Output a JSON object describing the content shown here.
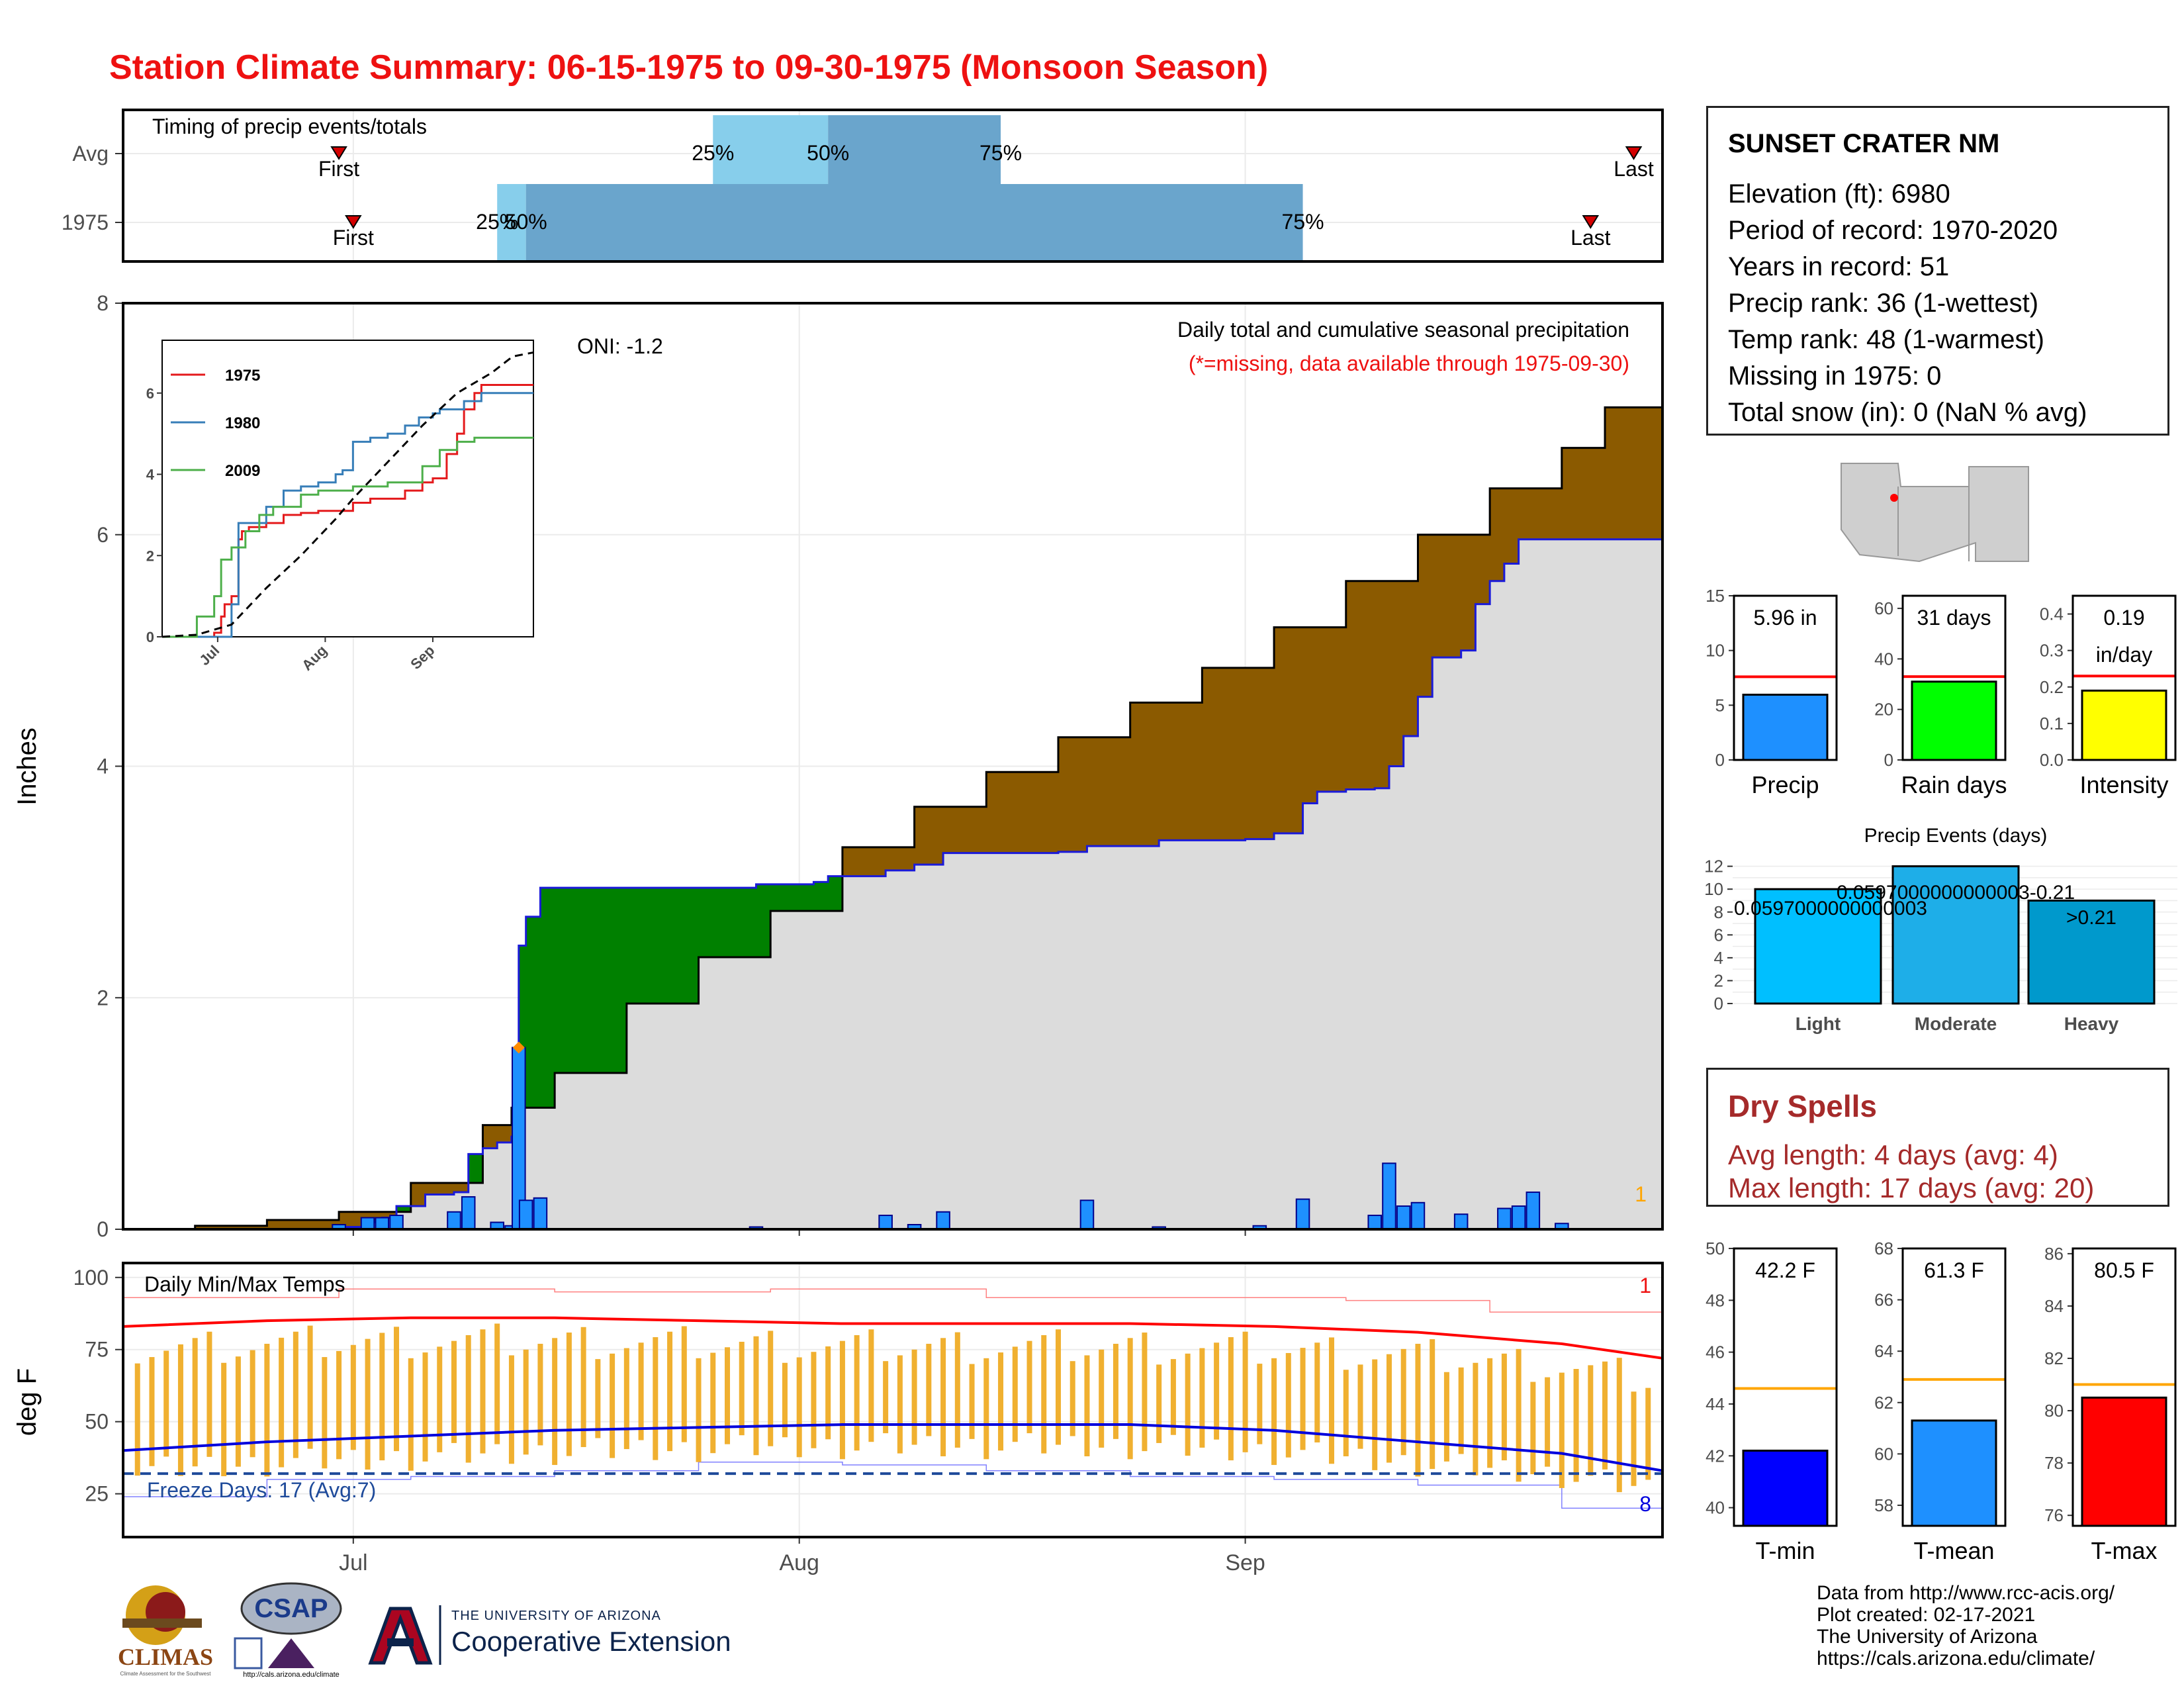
{
  "title": "Station Climate Summary: 06-15-1975 to 09-30-1975 (Monsoon Season)",
  "colors": {
    "title": "#ee1111",
    "avg_cumulative_fill": "#8b5a00",
    "year_above_avg_fill": "#008000",
    "below_fill": "#dcdcdc",
    "daily_bar": "#1e90ff",
    "tmax_line": "#ff0000",
    "tmin_line": "#0000dd",
    "range_bar": "#f0b030",
    "dry_spells": "#a52a2a"
  },
  "info": {
    "station": "SUNSET CRATER NM",
    "lines": [
      "Elevation (ft): 6980",
      "Period of record: 1970-2020",
      "Years in record: 51",
      "Precip rank: 36 (1-wettest)",
      "Temp rank: 48 (1-warmest)",
      "Missing in 1975: 0",
      "Total snow (in): 0 (NaN % avg)"
    ]
  },
  "dry_spells": {
    "title": "Dry Spells",
    "avg": "Avg length: 4 days (avg: 4)",
    "max": "Max length: 17 days (avg: 20)"
  },
  "credits": [
    "Data from http://www.rcc-acis.org/",
    "Plot created: 02-17-2021",
    "The University of Arizona",
    "https://cals.arizona.edu/climate/"
  ],
  "logos": {
    "climas": "CLIMAS",
    "climas_sub": "Climate Assessment for the Southwest",
    "csap": "CSAP",
    "csap_url": "http://cals.arizona.edu/climate",
    "ua_small": "THE UNIVERSITY OF ARIZONA",
    "ua_big": "Cooperative Extension"
  },
  "chart_data": [
    {
      "id": "timing",
      "type": "bar",
      "title": "Timing of precip events/totals",
      "rows": [
        {
          "name": "Avg",
          "first": "06-30",
          "p25": "07-26",
          "p50": "08-03",
          "p75": "08-15",
          "last": "09-28"
        },
        {
          "name": "1975",
          "first": "07-01",
          "p25": "07-11",
          "p50": "07-13",
          "p75": "09-05",
          "last": "09-25"
        }
      ],
      "marker_labels": {
        "first": "First",
        "last": "Last",
        "p25": "25%",
        "p50": "50%",
        "p75": "75%"
      },
      "x_ticks": [
        "Jul",
        "Aug",
        "Sep"
      ]
    },
    {
      "id": "cumulative",
      "type": "area",
      "title": "Daily total and cumulative seasonal precipitation",
      "subtitle": "(*=missing, data available through 1975-09-30)",
      "oni_label": "ONI: -1.2",
      "ylabel": "Inches",
      "ylim": [
        0,
        8
      ],
      "y_ticks": [
        0,
        2,
        4,
        6,
        8
      ],
      "x_ticks": [
        "Jul",
        "Aug",
        "Sep"
      ],
      "corner_label": "1",
      "avg_cumulative": [
        [
          0,
          0
        ],
        [
          5,
          0.03
        ],
        [
          10,
          0.08
        ],
        [
          15,
          0.15
        ],
        [
          20,
          0.4
        ],
        [
          25,
          0.9
        ],
        [
          27,
          1.05
        ],
        [
          30,
          1.35
        ],
        [
          35,
          1.95
        ],
        [
          40,
          2.35
        ],
        [
          45,
          2.75
        ],
        [
          50,
          3.3
        ],
        [
          55,
          3.65
        ],
        [
          60,
          3.95
        ],
        [
          65,
          4.25
        ],
        [
          70,
          4.55
        ],
        [
          75,
          4.85
        ],
        [
          80,
          5.2
        ],
        [
          85,
          5.6
        ],
        [
          90,
          6.0
        ],
        [
          95,
          6.4
        ],
        [
          100,
          6.75
        ],
        [
          103,
          7.1
        ],
        [
          107,
          7.3
        ]
      ],
      "year_cumulative": [
        [
          0,
          0
        ],
        [
          15,
          0.02
        ],
        [
          17,
          0.06
        ],
        [
          18,
          0.1
        ],
        [
          19,
          0.2
        ],
        [
          21,
          0.3
        ],
        [
          23,
          0.32
        ],
        [
          24,
          0.65
        ],
        [
          25,
          0.7
        ],
        [
          26,
          0.75
        ],
        [
          27,
          0.8
        ],
        [
          27.5,
          2.45
        ],
        [
          28,
          2.7
        ],
        [
          29,
          2.95
        ],
        [
          44,
          2.98
        ],
        [
          48,
          3.0
        ],
        [
          49,
          3.05
        ],
        [
          53,
          3.1
        ],
        [
          55,
          3.15
        ],
        [
          57,
          3.25
        ],
        [
          65,
          3.26
        ],
        [
          67,
          3.31
        ],
        [
          72,
          3.36
        ],
        [
          78,
          3.37
        ],
        [
          80,
          3.42
        ],
        [
          82,
          3.68
        ],
        [
          83,
          3.78
        ],
        [
          85,
          3.8
        ],
        [
          87,
          3.81
        ],
        [
          88,
          4.0
        ],
        [
          89,
          4.26
        ],
        [
          90,
          4.6
        ],
        [
          91,
          4.94
        ],
        [
          93,
          5.0
        ],
        [
          94,
          5.4
        ],
        [
          95,
          5.6
        ],
        [
          96,
          5.75
        ],
        [
          97,
          5.96
        ],
        [
          107,
          5.96
        ]
      ],
      "daily_bars": [
        [
          15,
          0.04
        ],
        [
          17,
          0.1
        ],
        [
          18,
          0.1
        ],
        [
          19,
          0.12
        ],
        [
          23,
          0.15
        ],
        [
          24,
          0.28
        ],
        [
          26,
          0.06
        ],
        [
          27,
          0.03
        ],
        [
          27.5,
          1.57
        ],
        [
          28,
          0.25
        ],
        [
          29,
          0.27
        ],
        [
          44,
          0.02
        ],
        [
          53,
          0.12
        ],
        [
          55,
          0.04
        ],
        [
          57,
          0.15
        ],
        [
          67,
          0.25
        ],
        [
          72,
          0.02
        ],
        [
          79,
          0.03
        ],
        [
          82,
          0.26
        ],
        [
          87,
          0.12
        ],
        [
          88,
          0.57
        ],
        [
          89,
          0.2
        ],
        [
          90,
          0.23
        ],
        [
          93,
          0.13
        ],
        [
          96,
          0.18
        ],
        [
          97,
          0.2
        ],
        [
          98,
          0.32
        ],
        [
          100,
          0.05
        ]
      ],
      "inset": {
        "series": [
          {
            "name": "1975",
            "color": "#e41a1c",
            "values": [
              [
                0,
                0
              ],
              [
                15,
                0.1
              ],
              [
                17,
                0.5
              ],
              [
                18,
                0.8
              ],
              [
                20,
                1.0
              ],
              [
                22,
                2.4
              ],
              [
                23,
                2.6
              ],
              [
                25,
                2.7
              ],
              [
                30,
                2.8
              ],
              [
                35,
                3.0
              ],
              [
                40,
                3.05
              ],
              [
                45,
                3.1
              ],
              [
                55,
                3.3
              ],
              [
                60,
                3.4
              ],
              [
                70,
                3.6
              ],
              [
                75,
                3.8
              ],
              [
                78,
                3.9
              ],
              [
                82,
                4.5
              ],
              [
                85,
                5.0
              ],
              [
                87,
                5.6
              ],
              [
                90,
                6.0
              ],
              [
                92,
                6.2
              ],
              [
                107,
                6.2
              ]
            ]
          },
          {
            "name": "1980",
            "color": "#377eb8",
            "values": [
              [
                0,
                0
              ],
              [
                20,
                0.8
              ],
              [
                22,
                2.8
              ],
              [
                30,
                3.2
              ],
              [
                35,
                3.6
              ],
              [
                40,
                3.7
              ],
              [
                45,
                3.8
              ],
              [
                50,
                4.0
              ],
              [
                52,
                4.1
              ],
              [
                55,
                4.8
              ],
              [
                60,
                4.9
              ],
              [
                65,
                5.0
              ],
              [
                70,
                5.2
              ],
              [
                74,
                5.4
              ],
              [
                78,
                5.5
              ],
              [
                80,
                5.6
              ],
              [
                87,
                5.8
              ],
              [
                92,
                6.0
              ],
              [
                107,
                6.0
              ]
            ]
          },
          {
            "name": "2009",
            "color": "#4daf4a",
            "values": [
              [
                0,
                0
              ],
              [
                10,
                0.5
              ],
              [
                15,
                1.0
              ],
              [
                17,
                1.9
              ],
              [
                20,
                2.2
              ],
              [
                24,
                2.6
              ],
              [
                28,
                3.0
              ],
              [
                32,
                3.2
              ],
              [
                40,
                3.5
              ],
              [
                45,
                3.6
              ],
              [
                55,
                3.7
              ],
              [
                65,
                3.8
              ],
              [
                75,
                4.2
              ],
              [
                80,
                4.6
              ],
              [
                85,
                4.8
              ],
              [
                90,
                4.9
              ],
              [
                107,
                4.9
              ]
            ]
          },
          {
            "name": "average",
            "color": "#000000",
            "values": [
              [
                0,
                0
              ],
              [
                10,
                0.05
              ],
              [
                20,
                0.3
              ],
              [
                30,
                1.2
              ],
              [
                40,
                2.0
              ],
              [
                50,
                2.9
              ],
              [
                55,
                3.4
              ],
              [
                65,
                4.3
              ],
              [
                75,
                5.2
              ],
              [
                85,
                6.0
              ],
              [
                95,
                6.5
              ],
              [
                101,
                6.9
              ],
              [
                107,
                7.0
              ]
            ]
          }
        ],
        "y_ticks": [
          0,
          2,
          4,
          6
        ],
        "x_ticks": [
          "Jul",
          "Aug",
          "Sep"
        ]
      }
    },
    {
      "id": "temps",
      "type": "line",
      "title": "Daily Min/Max Temps",
      "ylabel": "deg F",
      "y_ticks": [
        25,
        50,
        75,
        100
      ],
      "ylim": [
        10,
        105
      ],
      "x_ticks": [
        "Jul",
        "Aug",
        "Sep"
      ],
      "freeze_label": "Freeze Days: 17 (Avg:7)",
      "freeze_line": 32,
      "top_right_label": "1",
      "bottom_right_label": "8",
      "avg_max": [
        [
          0,
          83
        ],
        [
          10,
          85
        ],
        [
          20,
          86
        ],
        [
          30,
          86
        ],
        [
          40,
          85
        ],
        [
          50,
          84
        ],
        [
          60,
          84
        ],
        [
          70,
          84
        ],
        [
          80,
          83
        ],
        [
          90,
          81
        ],
        [
          100,
          77
        ],
        [
          107,
          72
        ]
      ],
      "avg_min": [
        [
          0,
          40
        ],
        [
          10,
          43
        ],
        [
          20,
          45
        ],
        [
          30,
          47
        ],
        [
          40,
          48
        ],
        [
          50,
          49
        ],
        [
          60,
          49
        ],
        [
          70,
          49
        ],
        [
          80,
          47
        ],
        [
          90,
          43
        ],
        [
          100,
          39
        ],
        [
          107,
          33
        ]
      ],
      "record_max": [
        [
          0,
          93
        ],
        [
          15,
          96
        ],
        [
          30,
          95
        ],
        [
          45,
          96
        ],
        [
          60,
          93
        ],
        [
          75,
          93
        ],
        [
          85,
          92
        ],
        [
          95,
          88
        ],
        [
          107,
          84
        ]
      ],
      "record_min": [
        [
          0,
          24
        ],
        [
          10,
          30
        ],
        [
          20,
          31
        ],
        [
          30,
          33
        ],
        [
          40,
          36
        ],
        [
          50,
          35
        ],
        [
          60,
          33
        ],
        [
          70,
          31
        ],
        [
          80,
          30
        ],
        [
          90,
          28
        ],
        [
          100,
          20
        ],
        [
          107,
          22
        ]
      ]
    },
    {
      "id": "precip_small",
      "type": "bar",
      "panels": [
        {
          "label": "Precip",
          "value": 5.96,
          "avg": 7.6,
          "ylim": [
            0,
            15
          ],
          "y_ticks": [
            0,
            5,
            10,
            15
          ],
          "text": "5.96 in",
          "color": "#1e90ff"
        },
        {
          "label": "Rain days",
          "value": 31,
          "avg": 33,
          "ylim": [
            0,
            65
          ],
          "y_ticks": [
            0,
            20,
            40,
            60
          ],
          "text": "31 days",
          "color": "#00ff00"
        },
        {
          "label": "Intensity",
          "value": 0.19,
          "avg": 0.23,
          "ylim": [
            0,
            0.45
          ],
          "y_ticks": [
            0.0,
            0.1,
            0.2,
            0.3,
            0.4
          ],
          "text": "0.19",
          "text2": "in/day",
          "color": "#ffff00"
        }
      ]
    },
    {
      "id": "precip_events",
      "type": "bar",
      "title": "Precip Events (days)",
      "categories": [
        "Light",
        "Moderate",
        "Heavy"
      ],
      "values": [
        10,
        12,
        9
      ],
      "ylim": [
        0,
        12.5
      ],
      "y_ticks": [
        0,
        2,
        4,
        6,
        8,
        10,
        12
      ],
      "bar_labels": [
        "0.0597000000000003",
        "0.0597000000000003-0.21",
        ">0.21"
      ]
    },
    {
      "id": "temp_small",
      "type": "bar",
      "panels": [
        {
          "label": "T-min",
          "value": 42.2,
          "avg": 44.6,
          "ylim": [
            39.3,
            50
          ],
          "y_ticks": [
            40,
            42,
            44,
            46,
            48,
            50
          ],
          "text": "42.2 F",
          "color": "#0000ff"
        },
        {
          "label": "T-mean",
          "value": 61.3,
          "avg": 62.9,
          "ylim": [
            57.2,
            68
          ],
          "y_ticks": [
            58,
            60,
            62,
            64,
            66,
            68
          ],
          "text": "61.3 F",
          "color": "#1e90ff"
        },
        {
          "label": "T-max",
          "value": 80.5,
          "avg": 81.0,
          "ylim": [
            75.6,
            86.2
          ],
          "y_ticks": [
            76,
            78,
            80,
            82,
            84,
            86
          ],
          "text": "80.5 F",
          "color": "#ff0000"
        }
      ]
    }
  ]
}
